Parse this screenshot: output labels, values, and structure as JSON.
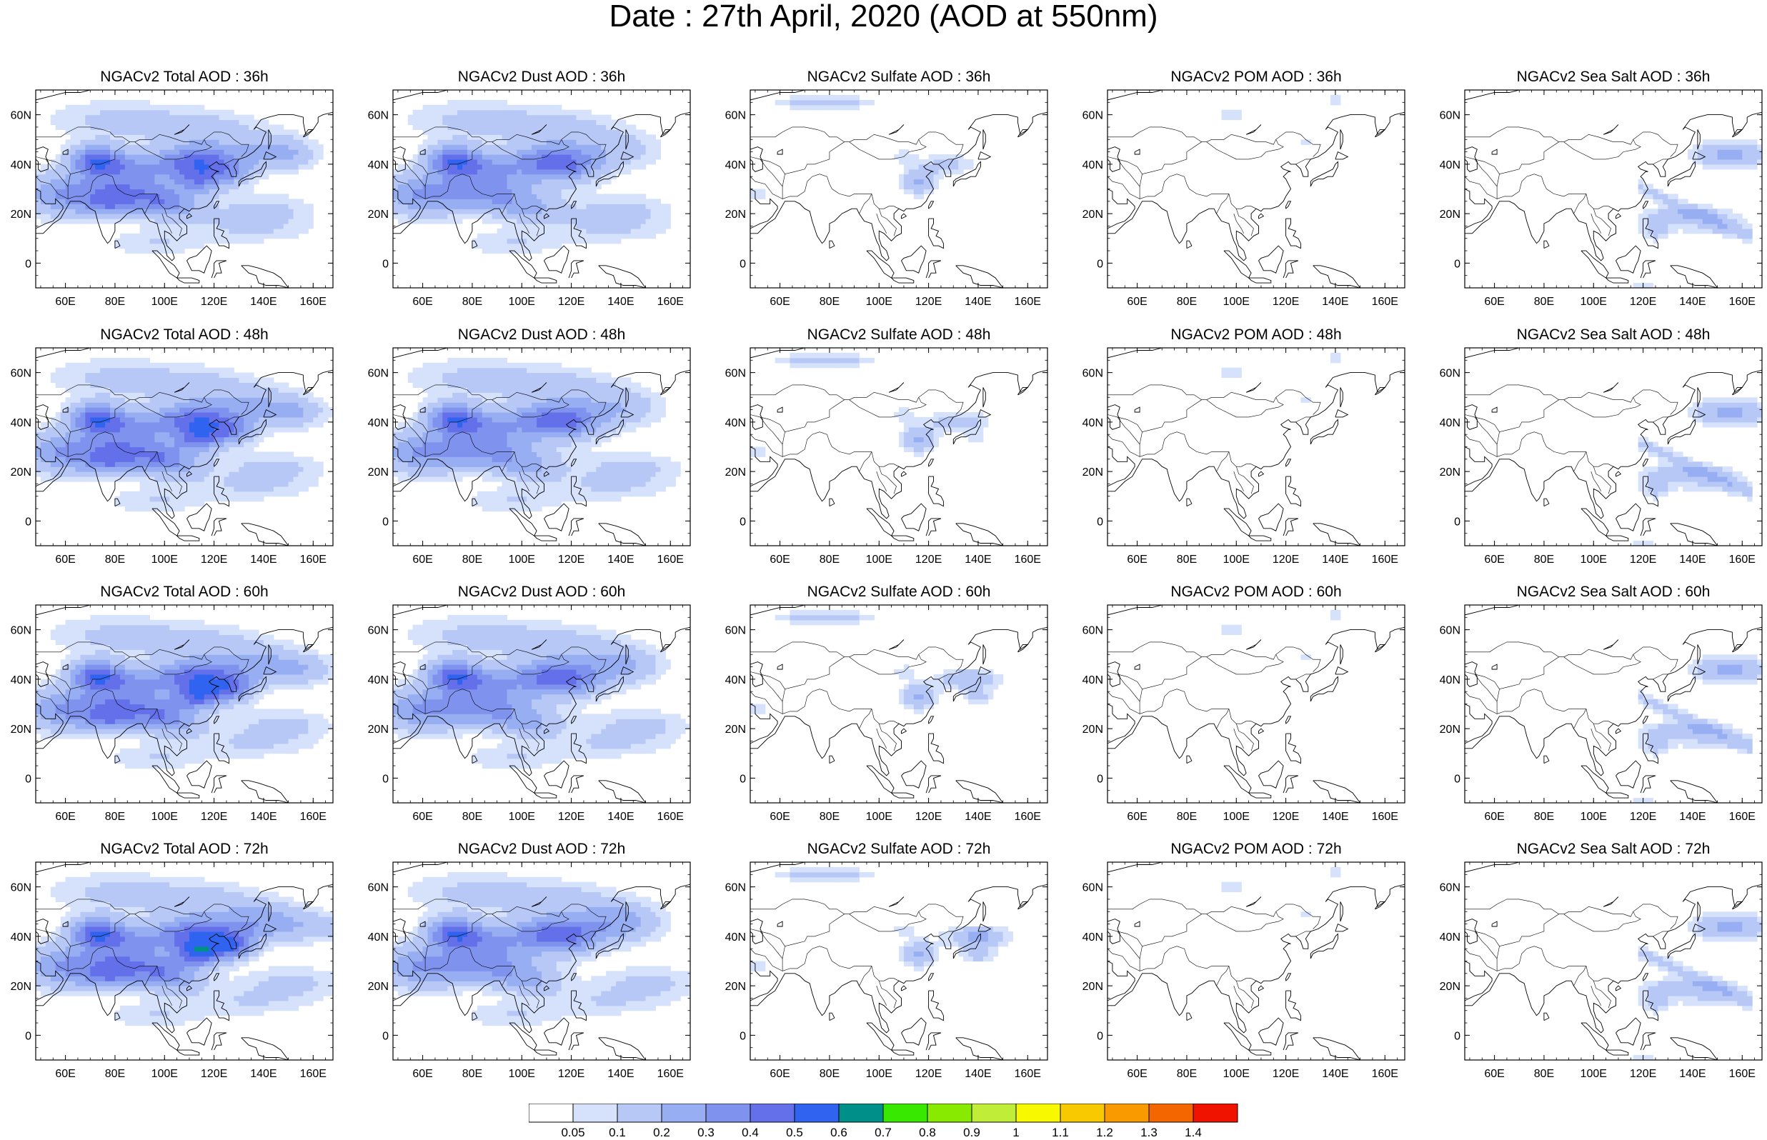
{
  "title": "Date : 27th April, 2020 (AOD at 550nm)",
  "x_ticks": [
    "60E",
    "80E",
    "100E",
    "120E",
    "140E",
    "160E"
  ],
  "y_ticks": [
    "60N",
    "40N",
    "20N",
    "0"
  ],
  "lon_range": [
    48,
    168
  ],
  "lat_range": [
    -10,
    70
  ],
  "species": [
    "Total",
    "Dust",
    "Sulfate",
    "POM",
    "SeaSalt"
  ],
  "panels": [
    [
      {
        "title": "NGACv2 Total AOD : 36h"
      },
      {
        "title": "NGACv2 Dust AOD : 36h"
      },
      {
        "title": "NGACv2 Sulfate AOD : 36h"
      },
      {
        "title": "NGACv2 POM AOD : 36h"
      },
      {
        "title": "NGACv2 Sea Salt AOD : 36h"
      }
    ],
    [
      {
        "title": "NGACv2 Total AOD : 48h"
      },
      {
        "title": "NGACv2 Dust AOD : 48h"
      },
      {
        "title": "NGACv2 Sulfate AOD : 48h"
      },
      {
        "title": "NGACv2 POM AOD : 48h"
      },
      {
        "title": "NGACv2 Sea Salt AOD : 48h"
      }
    ],
    [
      {
        "title": "NGACv2 Total AOD : 60h"
      },
      {
        "title": "NGACv2 Dust AOD : 60h"
      },
      {
        "title": "NGACv2 Sulfate AOD : 60h"
      },
      {
        "title": "NGACv2 POM AOD : 60h"
      },
      {
        "title": "NGACv2 Sea Salt AOD : 60h"
      }
    ],
    [
      {
        "title": "NGACv2 Total AOD : 72h"
      },
      {
        "title": "NGACv2 Dust AOD : 72h"
      },
      {
        "title": "NGACv2 Sulfate AOD : 72h"
      },
      {
        "title": "NGACv2 POM AOD : 72h"
      },
      {
        "title": "NGACv2 Sea Salt  AOD : 72h"
      }
    ]
  ],
  "colorbar": {
    "labels": [
      "0.05",
      "0.1",
      "0.2",
      "0.3",
      "0.4",
      "0.5",
      "0.6",
      "0.7",
      "0.8",
      "0.9",
      "1",
      "1.1",
      "1.2",
      "1.3",
      "1.4"
    ],
    "colors": [
      "#ffffff",
      "#d6e2fb",
      "#b7c8f6",
      "#98aef2",
      "#7f93ee",
      "#6470ea",
      "#2f63f0",
      "#00908a",
      "#38e800",
      "#88ea00",
      "#c0ee38",
      "#f8f800",
      "#f8c800",
      "#f89a00",
      "#f46600",
      "#f01400"
    ]
  },
  "map_style": {
    "coast_color": "#000000",
    "grid_land": "#ffffff"
  }
}
